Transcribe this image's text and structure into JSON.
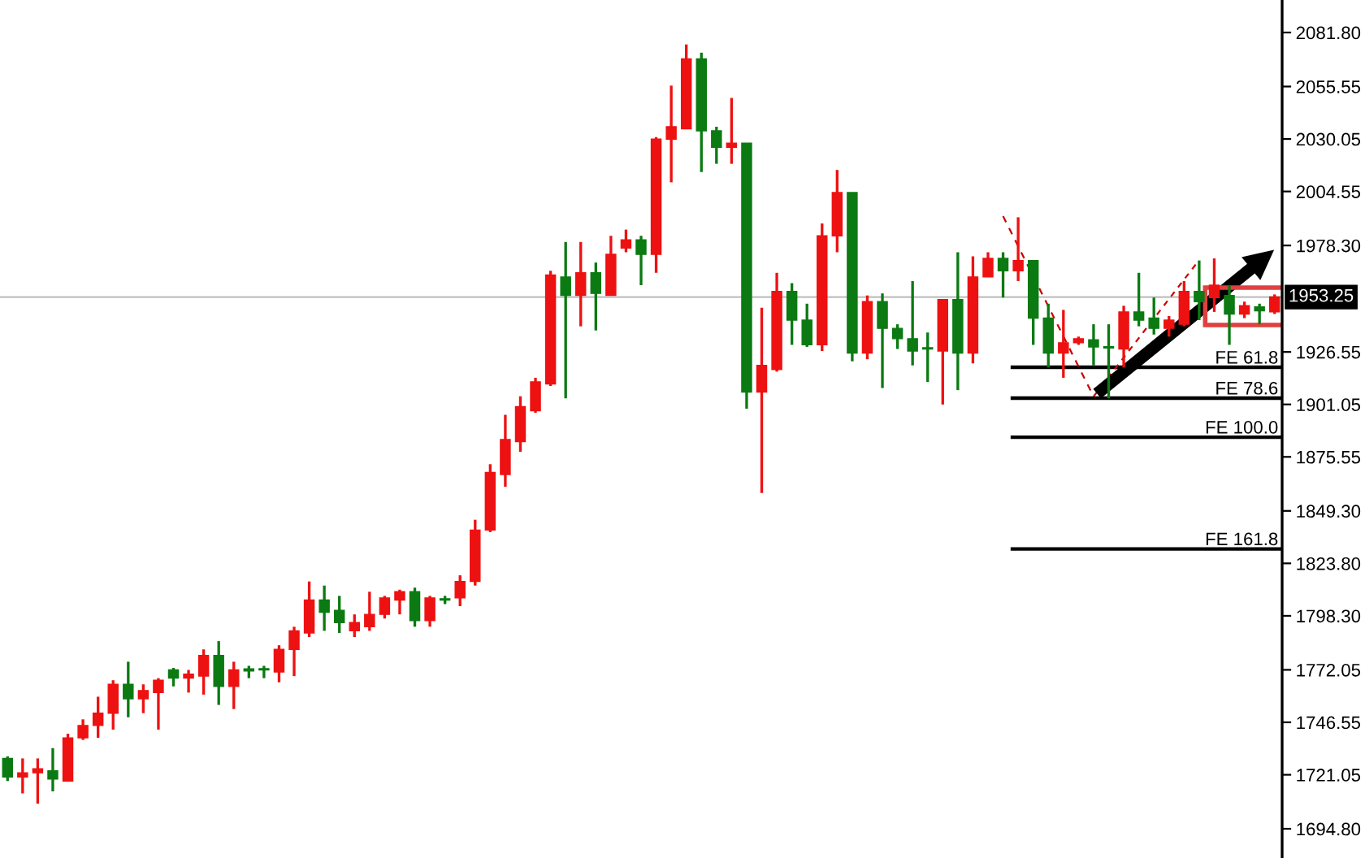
{
  "chart_data": {
    "type": "candlestick",
    "categories": [
      null,
      null,
      null,
      null,
      null,
      null,
      null,
      null,
      null,
      null,
      null,
      null,
      null,
      null,
      null,
      null,
      null,
      null,
      null,
      null,
      null,
      null,
      null,
      null,
      null,
      null,
      null,
      null,
      null,
      null,
      null,
      null,
      null,
      null,
      null,
      null,
      null,
      null,
      null,
      null,
      null,
      null,
      null,
      null,
      null,
      null,
      null,
      null,
      null,
      null,
      null,
      null,
      null,
      null,
      null,
      null,
      null,
      null,
      null,
      null,
      null,
      null,
      null,
      null,
      null,
      null,
      null,
      null,
      null,
      null,
      null,
      null,
      null,
      null,
      null,
      null,
      null,
      null,
      null,
      null,
      null,
      null,
      null,
      null,
      null
    ],
    "ohlc": [
      [
        1729,
        1730,
        1718,
        1720
      ],
      [
        1720,
        1729,
        1712,
        1722
      ],
      [
        1722,
        1729,
        1707,
        1724
      ],
      [
        1723,
        1734,
        1713,
        1719
      ],
      [
        1718,
        1741,
        1718,
        1739
      ],
      [
        1739,
        1748,
        1738,
        1745
      ],
      [
        1745,
        1759,
        1739,
        1751
      ],
      [
        1751,
        1767,
        1743,
        1765
      ],
      [
        1765,
        1776,
        1749,
        1758
      ],
      [
        1758,
        1765,
        1751,
        1762
      ],
      [
        1761,
        1768,
        1743,
        1767
      ],
      [
        1772,
        1773,
        1764,
        1768
      ],
      [
        1768,
        1772,
        1761,
        1770
      ],
      [
        1769,
        1782,
        1760,
        1779
      ],
      [
        1779,
        1786,
        1755,
        1764
      ],
      [
        1764,
        1776,
        1753,
        1772
      ],
      [
        1772.5,
        1774,
        1768,
        1771.5
      ],
      [
        1772.5,
        1774,
        1768,
        1772
      ],
      [
        1771,
        1784,
        1766,
        1782
      ],
      [
        1782,
        1793,
        1769,
        1791
      ],
      [
        1790,
        1815,
        1788,
        1806
      ],
      [
        1806,
        1813,
        1791,
        1800
      ],
      [
        1801,
        1808,
        1790,
        1795
      ],
      [
        1791,
        1799,
        1788,
        1795
      ],
      [
        1793,
        1810,
        1791,
        1799
      ],
      [
        1799,
        1808,
        1797,
        1807
      ],
      [
        1806,
        1811,
        1799,
        1810
      ],
      [
        1810,
        1812,
        1793,
        1796
      ],
      [
        1796,
        1808,
        1793,
        1807
      ],
      [
        1806,
        1808,
        1804,
        1806
      ],
      [
        1807,
        1818,
        1803,
        1815
      ],
      [
        1815,
        1845,
        1813,
        1840
      ],
      [
        1840,
        1872,
        1839,
        1868
      ],
      [
        1867,
        1896,
        1861,
        1884
      ],
      [
        1883,
        1905,
        1878,
        1900
      ],
      [
        1898,
        1914,
        1897,
        1912
      ],
      [
        1911,
        1966,
        1910,
        1964
      ],
      [
        1963,
        1980,
        1904,
        1954
      ],
      [
        1954,
        1980,
        1939,
        1965
      ],
      [
        1965,
        1970,
        1937,
        1955
      ],
      [
        1954,
        1983,
        1954,
        1974
      ],
      [
        1977,
        1986,
        1975,
        1981
      ],
      [
        1981,
        1983,
        1959,
        1974
      ],
      [
        1974,
        2031,
        1965,
        2030
      ],
      [
        2030,
        2056,
        2009,
        2036
      ],
      [
        2035,
        2076,
        2035,
        2069
      ],
      [
        2069,
        2072,
        2014,
        2034
      ],
      [
        2034,
        2036,
        2018,
        2026
      ],
      [
        2026,
        2050,
        2018,
        2028
      ],
      [
        2028,
        2028,
        1899,
        1907
      ],
      [
        1907,
        1948,
        1858,
        1920
      ],
      [
        1918,
        1965,
        1917,
        1956
      ],
      [
        1956,
        1960,
        1930,
        1942
      ],
      [
        1942,
        1950,
        1929,
        1930
      ],
      [
        1930,
        1989,
        1927,
        1983
      ],
      [
        1983,
        2015,
        1975,
        2004
      ],
      [
        2004,
        2004,
        1922,
        1926
      ],
      [
        1926,
        1954,
        1923,
        1951
      ],
      [
        1951,
        1955,
        1909,
        1938
      ],
      [
        1938,
        1940,
        1928,
        1933
      ],
      [
        1933,
        1961,
        1920,
        1927
      ],
      [
        1928,
        1936,
        1912,
        1928
      ],
      [
        1927,
        1952,
        1901,
        1952
      ],
      [
        1952,
        1975,
        1908,
        1926
      ],
      [
        1926,
        1973,
        1921,
        1963
      ],
      [
        1963,
        1975,
        1963,
        1972
      ],
      [
        1972,
        1975,
        1953,
        1966
      ],
      [
        1966,
        1992,
        1961,
        1971
      ],
      [
        1971,
        1971,
        1930,
        1943
      ],
      [
        1943,
        1950,
        1919,
        1926
      ],
      [
        1926,
        1947,
        1914,
        1931
      ],
      [
        1931,
        1934,
        1930,
        1933
      ],
      [
        1932.5,
        1940,
        1920,
        1929
      ],
      [
        1929,
        1940,
        1904,
        1928.5
      ],
      [
        1928,
        1949,
        1919,
        1946
      ],
      [
        1946,
        1965,
        1939,
        1942
      ],
      [
        1943,
        1953,
        1935,
        1938
      ],
      [
        1938,
        1944,
        1934,
        1942
      ],
      [
        1940,
        1961,
        1939,
        1956
      ],
      [
        1956,
        1971,
        1942,
        1951
      ],
      [
        1953,
        1972,
        1946,
        1959
      ],
      [
        1954,
        1959,
        1930,
        1945
      ],
      [
        1945,
        1951,
        1943,
        1949
      ],
      [
        1948.5,
        1950,
        1940,
        1946.5
      ],
      [
        1946,
        1954.5,
        1945,
        1953.25
      ]
    ],
    "colors": [
      "#0b7a12",
      "#ee1111",
      "#ee1111",
      "#0b7a12",
      "#ee1111",
      "#ee1111",
      "#ee1111",
      "#ee1111",
      "#0b7a12",
      "#ee1111",
      "#ee1111",
      "#0b7a12",
      "#ee1111",
      "#ee1111",
      "#0b7a12",
      "#ee1111",
      "#0b7a12",
      "#0b7a12",
      "#ee1111",
      "#ee1111",
      "#ee1111",
      "#0b7a12",
      "#0b7a12",
      "#ee1111",
      "#ee1111",
      "#ee1111",
      "#ee1111",
      "#0b7a12",
      "#ee1111",
      "#0b7a12",
      "#ee1111",
      "#ee1111",
      "#ee1111",
      "#ee1111",
      "#ee1111",
      "#ee1111",
      "#ee1111",
      "#0b7a12",
      "#ee1111",
      "#0b7a12",
      "#ee1111",
      "#ee1111",
      "#0b7a12",
      "#ee1111",
      "#ee1111",
      "#ee1111",
      "#0b7a12",
      "#0b7a12",
      "#ee1111",
      "#0b7a12",
      "#ee1111",
      "#ee1111",
      "#0b7a12",
      "#0b7a12",
      "#ee1111",
      "#ee1111",
      "#0b7a12",
      "#ee1111",
      "#0b7a12",
      "#0b7a12",
      "#0b7a12",
      "#0b7a12",
      "#ee1111",
      "#0b7a12",
      "#ee1111",
      "#ee1111",
      "#0b7a12",
      "#ee1111",
      "#0b7a12",
      "#0b7a12",
      "#ee1111",
      "#ee1111",
      "#0b7a12",
      "#0b7a12",
      "#ee1111",
      "#0b7a12",
      "#0b7a12",
      "#ee1111",
      "#ee1111",
      "#0b7a12",
      "#ee1111",
      "#0b7a12",
      "#ee1111",
      "#0b7a12",
      "#ee1111"
    ],
    "ylim": [
      1680.6,
      2097.6
    ],
    "yticks": [
      {
        "value": 2081.8,
        "label": "2081.80"
      },
      {
        "value": 2055.55,
        "label": "2055.55"
      },
      {
        "value": 2030.05,
        "label": "2030.05"
      },
      {
        "value": 2004.55,
        "label": "2004.55"
      },
      {
        "value": 1978.3,
        "label": "1978.30"
      },
      {
        "value": 1926.55,
        "label": "1926.55"
      },
      {
        "value": 1901.05,
        "label": "1901.05"
      },
      {
        "value": 1875.55,
        "label": "1875.55"
      },
      {
        "value": 1849.3,
        "label": "1849.30"
      },
      {
        "value": 1823.8,
        "label": "1823.80"
      },
      {
        "value": 1798.3,
        "label": "1798.30"
      },
      {
        "value": 1772.05,
        "label": "1772.05"
      },
      {
        "value": 1746.55,
        "label": "1746.55"
      },
      {
        "value": 1721.05,
        "label": "1721.05"
      },
      {
        "value": 1694.8,
        "label": "1694.80"
      }
    ],
    "tick_labels": "y",
    "ref_lines": [
      {
        "axis": "y",
        "value": 1953.25,
        "label": "1953.25",
        "color": "#c0c0c0"
      },
      {
        "axis": "y",
        "value": 1919.1,
        "label": "FE 61.8",
        "color": "#000000"
      },
      {
        "axis": "y",
        "value": 1904.1,
        "label": "FE 78.6",
        "color": "#000000"
      },
      {
        "axis": "y",
        "value": 1885.1,
        "label": "FE 100.0",
        "color": "#000000"
      },
      {
        "axis": "y",
        "value": 1830.8,
        "label": "FE 161.8",
        "color": "#000000"
      }
    ]
  }
}
